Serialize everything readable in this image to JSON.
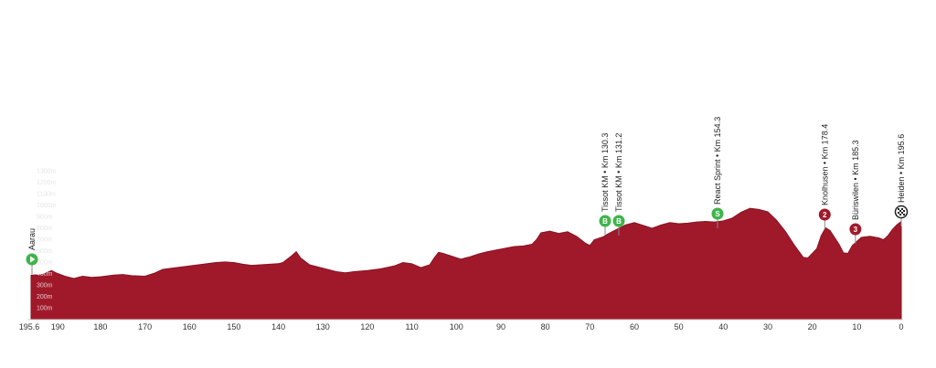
{
  "chart_data": {
    "type": "area",
    "title": "",
    "xlabel": "",
    "ylabel": "",
    "xlim": [
      195.6,
      0
    ],
    "ylim": [
      0,
      1300
    ],
    "x_ticks": [
      "195.6",
      "190",
      "180",
      "170",
      "160",
      "150",
      "140",
      "130",
      "120",
      "110",
      "100",
      "90",
      "80",
      "70",
      "60",
      "50",
      "40",
      "30",
      "20",
      "10",
      "0"
    ],
    "y_ticks": [
      "100m",
      "200m",
      "300m",
      "400m",
      "500m",
      "600m",
      "700m",
      "800m",
      "900m",
      "1000m",
      "1100m",
      "1200m",
      "1300m"
    ],
    "series": [
      {
        "values": [
          [
            195.6,
            390
          ],
          [
            193,
            395
          ],
          [
            191,
            430
          ],
          [
            190,
            410
          ],
          [
            188,
            380
          ],
          [
            186,
            360
          ],
          [
            184,
            380
          ],
          [
            182,
            370
          ],
          [
            180,
            375
          ],
          [
            177,
            390
          ],
          [
            175,
            395
          ],
          [
            173,
            385
          ],
          [
            170,
            380
          ],
          [
            168,
            405
          ],
          [
            166,
            440
          ],
          [
            164,
            450
          ],
          [
            162,
            460
          ],
          [
            160,
            470
          ],
          [
            158,
            480
          ],
          [
            156,
            490
          ],
          [
            154,
            500
          ],
          [
            152,
            505
          ],
          [
            150,
            500
          ],
          [
            148,
            485
          ],
          [
            146,
            475
          ],
          [
            144,
            480
          ],
          [
            142,
            485
          ],
          [
            140,
            490
          ],
          [
            139,
            500
          ],
          [
            137,
            560
          ],
          [
            136,
            595
          ],
          [
            135,
            540
          ],
          [
            133,
            480
          ],
          [
            131,
            460
          ],
          [
            129,
            440
          ],
          [
            127,
            420
          ],
          [
            125,
            410
          ],
          [
            123,
            420
          ],
          [
            120,
            430
          ],
          [
            117,
            445
          ],
          [
            114,
            470
          ],
          [
            112,
            500
          ],
          [
            110,
            490
          ],
          [
            108,
            455
          ],
          [
            106,
            480
          ],
          [
            105,
            540
          ],
          [
            104,
            590
          ],
          [
            103,
            580
          ],
          [
            101,
            555
          ],
          [
            99,
            530
          ],
          [
            97,
            550
          ],
          [
            95,
            575
          ],
          [
            93,
            595
          ],
          [
            91,
            610
          ],
          [
            89,
            625
          ],
          [
            87,
            640
          ],
          [
            85,
            645
          ],
          [
            83,
            660
          ],
          [
            82,
            700
          ],
          [
            81,
            760
          ],
          [
            79,
            775
          ],
          [
            77,
            755
          ],
          [
            75,
            770
          ],
          [
            73,
            730
          ],
          [
            71,
            670
          ],
          [
            70,
            650
          ],
          [
            69,
            700
          ],
          [
            67,
            725
          ],
          [
            66,
            750
          ],
          [
            65,
            770
          ],
          [
            64,
            790
          ],
          [
            62,
            830
          ],
          [
            60,
            850
          ],
          [
            58,
            825
          ],
          [
            56,
            800
          ],
          [
            54,
            830
          ],
          [
            52,
            850
          ],
          [
            50,
            840
          ],
          [
            48,
            845
          ],
          [
            46,
            855
          ],
          [
            44,
            860
          ],
          [
            42,
            855
          ],
          [
            40,
            865
          ],
          [
            38,
            890
          ],
          [
            36,
            940
          ],
          [
            34,
            975
          ],
          [
            32,
            965
          ],
          [
            30,
            945
          ],
          [
            28,
            870
          ],
          [
            26,
            770
          ],
          [
            24,
            650
          ],
          [
            22,
            545
          ],
          [
            21,
            540
          ],
          [
            19,
            620
          ],
          [
            18,
            735
          ],
          [
            17,
            805
          ],
          [
            16,
            780
          ],
          [
            14,
            660
          ],
          [
            13,
            585
          ],
          [
            12,
            580
          ],
          [
            11,
            650
          ],
          [
            9,
            720
          ],
          [
            7,
            730
          ],
          [
            5,
            715
          ],
          [
            4,
            700
          ],
          [
            3,
            735
          ],
          [
            2,
            790
          ],
          [
            1,
            830
          ],
          [
            0,
            860
          ]
        ]
      }
    ],
    "markers": [
      {
        "label": "Aarau",
        "km": 195.6,
        "badge": "▶",
        "color": "#3db54a"
      },
      {
        "label": "Tissot KM • Km 130.3",
        "km": 65.3,
        "badge": "B",
        "color": "#3db54a"
      },
      {
        "label": "Tissot KM • Km 131.2",
        "km": 64.4,
        "badge": "B",
        "color": "#3db54a"
      },
      {
        "label": "React Sprint • Km 154.3",
        "km": 41.3,
        "badge": "S",
        "color": "#3db54a"
      },
      {
        "label": "Knolhusen • Km 178.4",
        "km": 17.2,
        "badge": "2",
        "color": "#a0192a"
      },
      {
        "label": "Büriswilen • Km 185.3",
        "km": 10.3,
        "badge": "3",
        "color": "#a0192a"
      },
      {
        "label": "Heiden • Km 195.6",
        "km": 0,
        "badge": "finish",
        "color": "#222222"
      }
    ],
    "colors": {
      "fill": "#a0192a",
      "stroke": "#8a1322",
      "green": "#3db54a",
      "red": "#a0192a"
    },
    "grid": false,
    "legend": "none"
  }
}
